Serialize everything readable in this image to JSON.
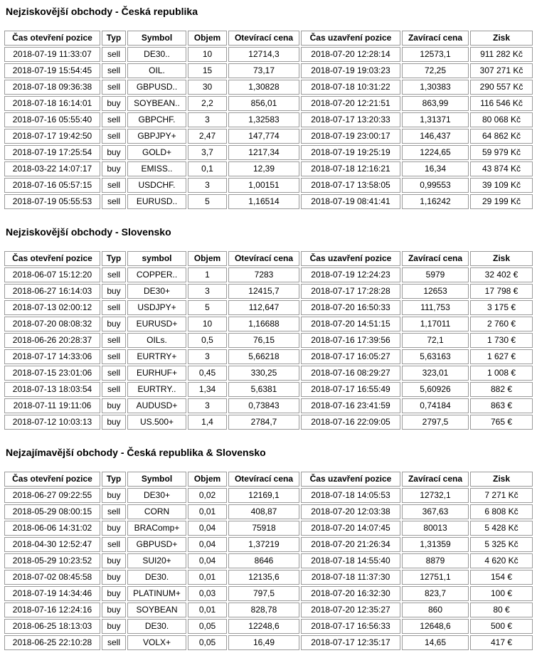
{
  "report": {
    "colors": {
      "background": "#ffffff",
      "text": "#000000",
      "table_border": "#9a9a9a"
    }
  },
  "sections": [
    {
      "title": "Nejziskovější obchody - Česká republika",
      "columns": [
        "Čas otevření pozice",
        "Typ",
        "Symbol",
        "Objem",
        "Otevírací cena",
        "Čas uzavření pozice",
        "Zavírací cena",
        "Zisk"
      ],
      "rows": [
        [
          "2018-07-19 11:33:07",
          "sell",
          "DE30..",
          "10",
          "12714,3",
          "2018-07-20 12:28:14",
          "12573,1",
          "911 282 Kč"
        ],
        [
          "2018-07-19 15:54:45",
          "sell",
          "OIL.",
          "15",
          "73,17",
          "2018-07-19 19:03:23",
          "72,25",
          "307 271 Kč"
        ],
        [
          "2018-07-18 09:36:38",
          "sell",
          "GBPUSD..",
          "30",
          "1,30828",
          "2018-07-18 10:31:22",
          "1,30383",
          "290 557 Kč"
        ],
        [
          "2018-07-18 16:14:01",
          "buy",
          "SOYBEAN..",
          "2,2",
          "856,01",
          "2018-07-20 12:21:51",
          "863,99",
          "116 546 Kč"
        ],
        [
          "2018-07-16 05:55:40",
          "sell",
          "GBPCHF.",
          "3",
          "1,32583",
          "2018-07-17 13:20:33",
          "1,31371",
          "80 068 Kč"
        ],
        [
          "2018-07-17 19:42:50",
          "sell",
          "GBPJPY+",
          "2,47",
          "147,774",
          "2018-07-19 23:00:17",
          "146,437",
          "64 862 Kč"
        ],
        [
          "2018-07-19 17:25:54",
          "buy",
          "GOLD+",
          "3,7",
          "1217,34",
          "2018-07-19 19:25:19",
          "1224,65",
          "59 979 Kč"
        ],
        [
          "2018-03-22 14:07:17",
          "buy",
          "EMISS..",
          "0,1",
          "12,39",
          "2018-07-18 12:16:21",
          "16,34",
          "43 874 Kč"
        ],
        [
          "2018-07-16 05:57:15",
          "sell",
          "USDCHF.",
          "3",
          "1,00151",
          "2018-07-17 13:58:05",
          "0,99553",
          "39 109 Kč"
        ],
        [
          "2018-07-19 05:55:53",
          "sell",
          "EURUSD..",
          "5",
          "1,16514",
          "2018-07-19 08:41:41",
          "1,16242",
          "29 199 Kč"
        ]
      ]
    },
    {
      "title": "Nejziskovější obchody - Slovensko",
      "columns": [
        "Čas otevření pozice",
        "Typ",
        "symbol",
        "Objem",
        "Otevírací cena",
        "Čas uzavření pozice",
        "Zavírací cena",
        "Zisk"
      ],
      "rows": [
        [
          "2018-06-07 15:12:20",
          "sell",
          "COPPER..",
          "1",
          "7283",
          "2018-07-19 12:24:23",
          "5979",
          "32 402 €"
        ],
        [
          "2018-06-27 16:14:03",
          "buy",
          "DE30+",
          "3",
          "12415,7",
          "2018-07-17 17:28:28",
          "12653",
          "17 798 €"
        ],
        [
          "2018-07-13 02:00:12",
          "sell",
          "USDJPY+",
          "5",
          "112,647",
          "2018-07-20 16:50:33",
          "111,753",
          "3 175 €"
        ],
        [
          "2018-07-20 08:08:32",
          "buy",
          "EURUSD+",
          "10",
          "1,16688",
          "2018-07-20 14:51:15",
          "1,17011",
          "2 760 €"
        ],
        [
          "2018-06-26 20:28:37",
          "sell",
          "OILs.",
          "0,5",
          "76,15",
          "2018-07-16 17:39:56",
          "72,1",
          "1 730 €"
        ],
        [
          "2018-07-17 14:33:06",
          "sell",
          "EURTRY+",
          "3",
          "5,66218",
          "2018-07-17 16:05:27",
          "5,63163",
          "1 627 €"
        ],
        [
          "2018-07-15 23:01:06",
          "sell",
          "EURHUF+",
          "0,45",
          "330,25",
          "2018-07-16 08:29:27",
          "323,01",
          "1 008 €"
        ],
        [
          "2018-07-13 18:03:54",
          "sell",
          "EURTRY..",
          "1,34",
          "5,6381",
          "2018-07-17 16:55:49",
          "5,60926",
          "882 €"
        ],
        [
          "2018-07-11 19:11:06",
          "buy",
          "AUDUSD+",
          "3",
          "0,73843",
          "2018-07-16 23:41:59",
          "0,74184",
          "863 €"
        ],
        [
          "2018-07-12 10:03:13",
          "buy",
          "US.500+",
          "1,4",
          "2784,7",
          "2018-07-16 22:09:05",
          "2797,5",
          "765 €"
        ]
      ]
    },
    {
      "title": "Nejzajímavější obchody - Česká republika & Slovensko",
      "columns": [
        "Čas otevření pozice",
        "Typ",
        "Symbol",
        "Objem",
        "Otevírací cena",
        "Čas uzavření pozice",
        "Zavírací cena",
        "Zisk"
      ],
      "rows": [
        [
          "2018-06-27 09:22:55",
          "buy",
          "DE30+",
          "0,02",
          "12169,1",
          "2018-07-18 14:05:53",
          "12732,1",
          "7 271 Kč"
        ],
        [
          "2018-05-29 08:00:15",
          "sell",
          "CORN",
          "0,01",
          "408,87",
          "2018-07-20 12:03:38",
          "367,63",
          "6 808 Kč"
        ],
        [
          "2018-06-06 14:31:02",
          "buy",
          "BRAComp+",
          "0,04",
          "75918",
          "2018-07-20 14:07:45",
          "80013",
          "5 428 Kč"
        ],
        [
          "2018-04-30 12:52:47",
          "sell",
          "GBPUSD+",
          "0,04",
          "1,37219",
          "2018-07-20 21:26:34",
          "1,31359",
          "5 325 Kč"
        ],
        [
          "2018-05-29 10:23:52",
          "buy",
          "SUI20+",
          "0,04",
          "8646",
          "2018-07-18 14:55:40",
          "8879",
          "4 620 Kč"
        ],
        [
          "2018-07-02 08:45:58",
          "buy",
          "DE30.",
          "0,01",
          "12135,6",
          "2018-07-18 11:37:30",
          "12751,1",
          "154 €"
        ],
        [
          "2018-07-19 14:34:46",
          "buy",
          "PLATINUM+",
          "0,03",
          "797,5",
          "2018-07-20 16:32:30",
          "823,7",
          "100 €"
        ],
        [
          "2018-07-16 12:24:16",
          "buy",
          "SOYBEAN",
          "0,01",
          "828,78",
          "2018-07-20 12:35:27",
          "860",
          "80 €"
        ],
        [
          "2018-06-25 18:13:03",
          "buy",
          "DE30.",
          "0,05",
          "12248,6",
          "2018-07-17 16:56:33",
          "12648,6",
          "500 €"
        ],
        [
          "2018-06-25 22:10:28",
          "sell",
          "VOLX+",
          "0,05",
          "16,49",
          "2018-07-17 12:35:17",
          "14,65",
          "417 €"
        ]
      ]
    }
  ]
}
